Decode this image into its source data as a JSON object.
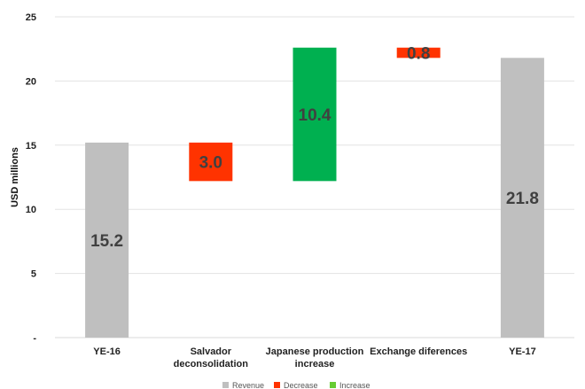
{
  "chart_data": {
    "type": "bar",
    "subtype": "waterfall",
    "ylabel": "USD millions",
    "ylim": [
      0,
      25
    ],
    "yticks": [
      {
        "value": 0,
        "label": "-"
      },
      {
        "value": 5,
        "label": "5"
      },
      {
        "value": 10,
        "label": "10"
      },
      {
        "value": 15,
        "label": "15"
      },
      {
        "value": 20,
        "label": "20"
      },
      {
        "value": 25,
        "label": "25"
      }
    ],
    "grid": true,
    "legend_placement": "bottom",
    "categories": [
      [
        "YE-16"
      ],
      [
        "Salvador",
        "deconsolidation"
      ],
      [
        "Japanese production",
        "increase"
      ],
      [
        "Exchange diferences"
      ],
      [
        "YE-17"
      ]
    ],
    "bars": [
      {
        "kind": "Revenue",
        "start": 0,
        "end": 15.2,
        "label": "15.2"
      },
      {
        "kind": "Decrease",
        "start": 15.2,
        "end": 12.2,
        "label": "3.0"
      },
      {
        "kind": "Increase",
        "start": 12.2,
        "end": 22.6,
        "label": "10.4"
      },
      {
        "kind": "Decrease",
        "start": 22.6,
        "end": 21.8,
        "label": "0.8"
      },
      {
        "kind": "Revenue",
        "start": 0,
        "end": 21.8,
        "label": "21.8"
      }
    ],
    "series": [
      {
        "name": "Revenue",
        "color": "#bfbfbf"
      },
      {
        "name": "Decrease",
        "color": "#ff3300"
      },
      {
        "name": "Increase",
        "color": "#00b050"
      }
    ],
    "legend_colors": {
      "Revenue": "#bfbfbf",
      "Decrease": "#ff3300",
      "Increase": "#66cc33"
    }
  }
}
